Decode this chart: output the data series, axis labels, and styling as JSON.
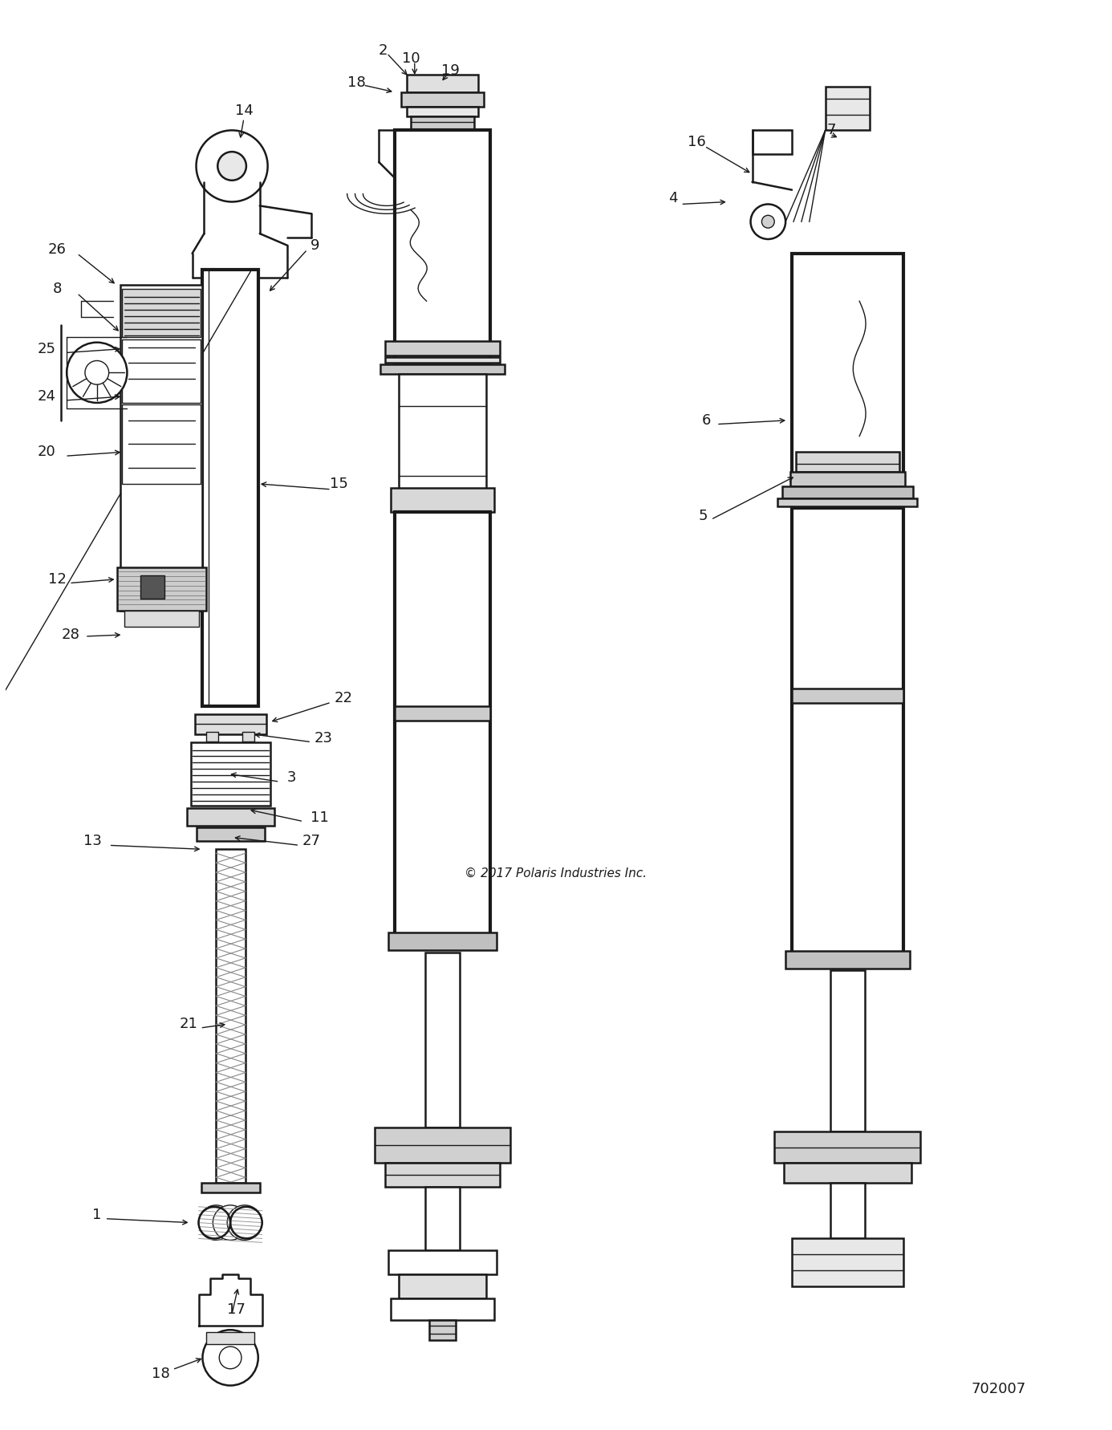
{
  "background_color": "#ffffff",
  "copyright_text": "© 2017 Polaris Industries Inc.",
  "diagram_id": "702007",
  "line_color": "#1a1a1a",
  "text_color": "#1a1a1a",
  "font_size": 13,
  "fig_width": 13.86,
  "fig_height": 17.82,
  "dpi": 100
}
